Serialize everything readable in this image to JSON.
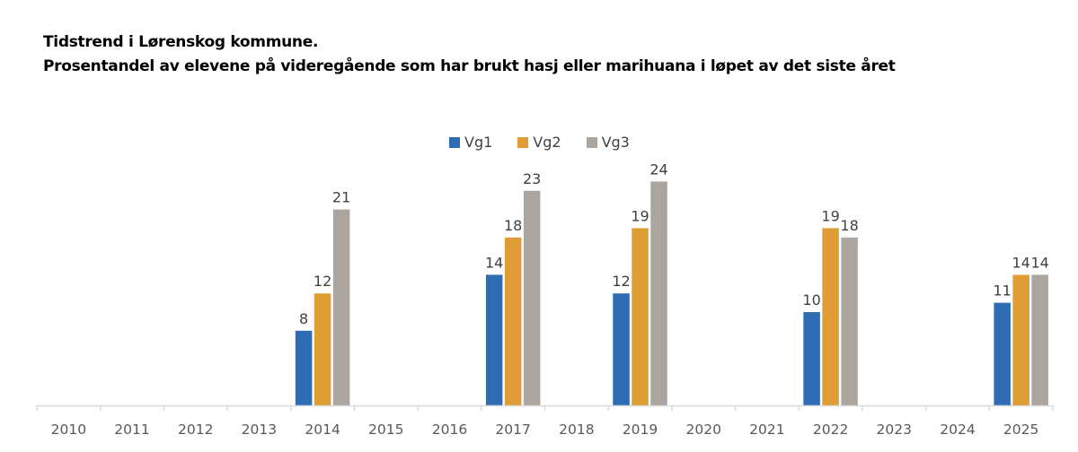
{
  "chart_data": {
    "type": "bar",
    "title": "Tidstrend i Lørenskog kommune.",
    "subtitle": "Prosentandel av elevene på videregående som har brukt hasj eller marihuana i løpet av det siste året",
    "xlabel": "",
    "ylabel": "",
    "ylim": [
      0,
      25
    ],
    "grid": false,
    "legend_position": "top-center",
    "categories": [
      "2010",
      "2011",
      "2012",
      "2013",
      "2014",
      "2015",
      "2016",
      "2017",
      "2018",
      "2019",
      "2020",
      "2021",
      "2022",
      "2023",
      "2024",
      "2025"
    ],
    "series": [
      {
        "name": "Vg1",
        "color": "#2e6db4",
        "values": [
          null,
          null,
          null,
          null,
          8,
          null,
          null,
          14,
          null,
          12,
          null,
          null,
          10,
          null,
          null,
          11
        ]
      },
      {
        "name": "Vg2",
        "color": "#e09c35",
        "values": [
          null,
          null,
          null,
          null,
          12,
          null,
          null,
          18,
          null,
          19,
          null,
          null,
          19,
          null,
          null,
          14
        ]
      },
      {
        "name": "Vg3",
        "color": "#aba49f",
        "values": [
          null,
          null,
          null,
          null,
          21,
          null,
          null,
          23,
          null,
          24,
          null,
          null,
          18,
          null,
          null,
          14
        ]
      }
    ]
  }
}
